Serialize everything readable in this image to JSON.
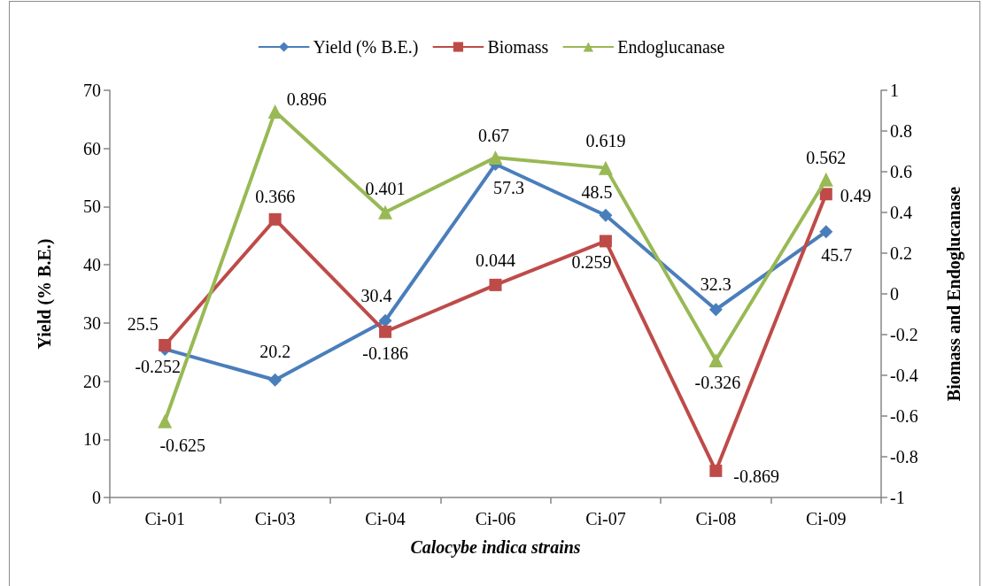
{
  "chart_data": {
    "type": "line",
    "xlabel": "Calocybe indica strains",
    "ylabel": "Yield (% B.E.)",
    "y2label": "Biomass and Endoglucanase",
    "categories": [
      "Ci-01",
      "Ci-03",
      "Ci-04",
      "Ci-06",
      "Ci-07",
      "Ci-08",
      "Ci-09"
    ],
    "series": [
      {
        "name": "Yield (% B.E.)",
        "color": "#4a7ebb",
        "marker": "diamond",
        "values": [
          25.5,
          20.2,
          30.4,
          57.3,
          48.5,
          32.3,
          45.7
        ]
      },
      {
        "name": "Biomass",
        "color": "#be4b48",
        "marker": "square",
        "axis": "y2",
        "values": [
          -0.252,
          0.366,
          -0.186,
          0.044,
          0.259,
          -0.869,
          0.49
        ]
      },
      {
        "name": "Endoglucanase",
        "color": "#98b954",
        "marker": "triangle",
        "axis": "y2",
        "values": [
          -0.625,
          0.896,
          0.401,
          0.67,
          0.619,
          -0.326,
          0.562
        ]
      }
    ],
    "ylim": [
      0,
      70
    ],
    "yticks": [
      0,
      10,
      20,
      30,
      40,
      50,
      60,
      70
    ],
    "y2lim": [
      -1,
      1
    ],
    "y2ticks": [
      -1,
      -0.8,
      -0.6,
      -0.4,
      -0.2,
      0,
      0.2,
      0.4,
      0.6,
      0.8,
      1
    ],
    "data_labels": true,
    "legend": "top",
    "grid": false,
    "line_style": "solid"
  }
}
